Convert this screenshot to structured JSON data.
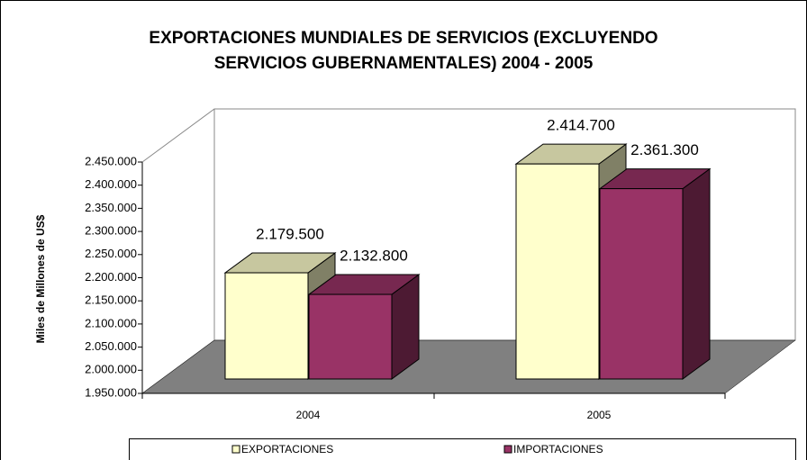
{
  "chart_data": {
    "type": "bar3d",
    "title": [
      "EXPORTACIONES MUNDIALES DE SERVICIOS (EXCLUYENDO",
      "SERVICIOS GUBERNAMENTALES) 2004 - 2005"
    ],
    "y_label": "Miles de Millones de US$",
    "categories": [
      "2004",
      "2005"
    ],
    "series": [
      {
        "name": "EXPORTACIONES",
        "color": "#ffffcc",
        "values": [
          2179500,
          2414700
        ],
        "value_labels": [
          "2.179.500",
          "2.414.700"
        ]
      },
      {
        "name": "IMPORTACIONES",
        "color": "#993366",
        "values": [
          2132800,
          2361300
        ],
        "value_labels": [
          "2.132.800",
          "2.361.300"
        ]
      }
    ],
    "ylim": [
      1950000,
      2450000
    ],
    "yticks": [
      {
        "value": 1950000,
        "label": "1.950.000"
      },
      {
        "value": 2000000,
        "label": "2.000.000"
      },
      {
        "value": 2050000,
        "label": "2.050.000"
      },
      {
        "value": 2100000,
        "label": "2.100.000"
      },
      {
        "value": 2150000,
        "label": "2.150.000"
      },
      {
        "value": 2200000,
        "label": "2.200.000"
      },
      {
        "value": 2250000,
        "label": "2.250.000"
      },
      {
        "value": 2300000,
        "label": "2.300.000"
      },
      {
        "value": 2350000,
        "label": "2.350.000"
      },
      {
        "value": 2400000,
        "label": "2.400.000"
      },
      {
        "value": 2450000,
        "label": "2.450.000"
      }
    ],
    "legend": "bottom"
  }
}
